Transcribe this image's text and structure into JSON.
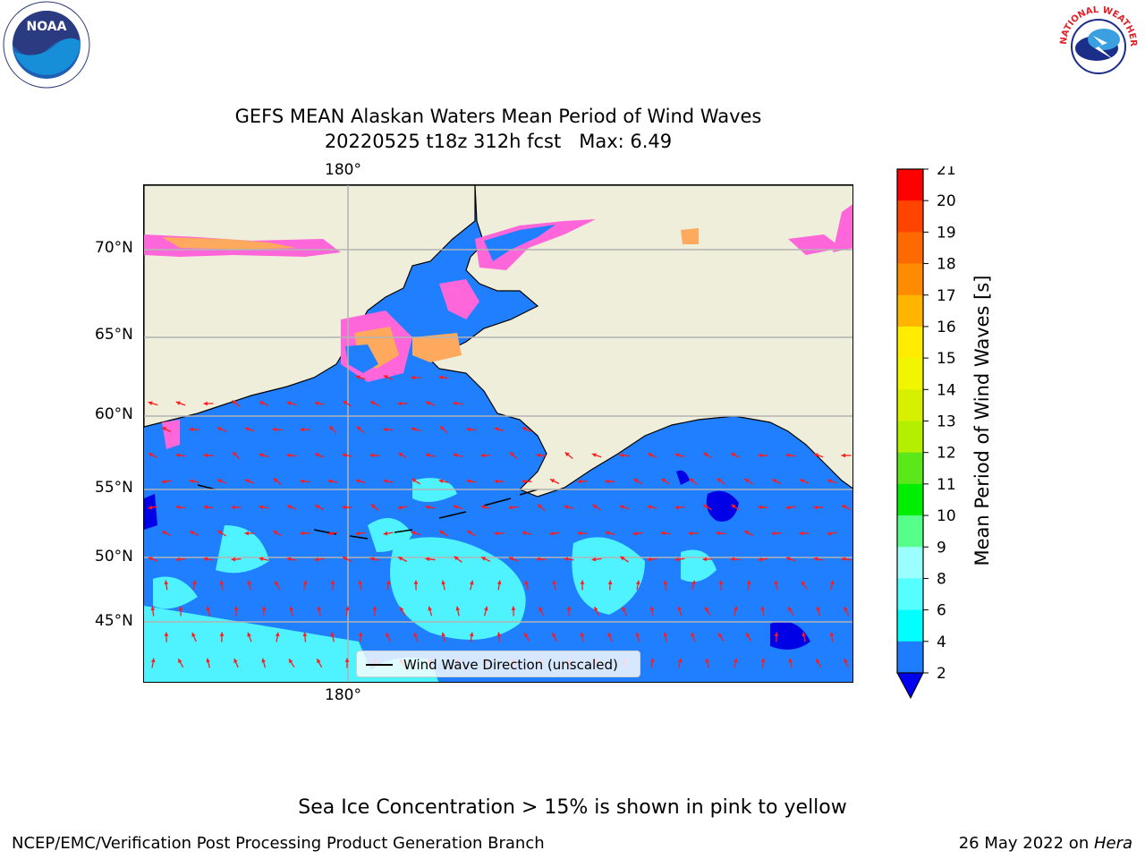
{
  "title": {
    "line1": "GEFS MEAN Alaskan Waters Mean Period of Wind Waves",
    "line2": "20220525 t18z 312h fcst   Max: 6.49"
  },
  "map": {
    "top_lon_label": "180°",
    "bottom_lon_label": "180°",
    "lat_labels": [
      "70°N",
      "65°N",
      "60°N",
      "55°N",
      "50°N",
      "45°N"
    ],
    "legend_label": "Wind Wave Direction (unscaled)"
  },
  "colorbar": {
    "label": "Mean Period of Wind Waves [s]",
    "ticks": [
      "21",
      "20",
      "19",
      "18",
      "17",
      "16",
      "15",
      "14",
      "13",
      "12",
      "11",
      "10",
      "9",
      "8",
      "6",
      "4",
      "2"
    ],
    "colors": {
      "2-4": "#1e7cff",
      "4-6": "#00ffff",
      "6-8": "#55ffff",
      "8-9": "#9cffff",
      "9-10": "#55ff8a",
      "10-11": "#00ee00",
      "11-12": "#5ae81a",
      "12-13": "#b5ef00",
      "13-14": "#d7f000",
      "14-15": "#f2f500",
      "15-16": "#ffec00",
      "16-17": "#ffb400",
      "17-18": "#ff8c00",
      "18-19": "#ff6a00",
      "19-20": "#ff4400",
      "20-21": "#ff0000",
      "under": "#0000ee"
    }
  },
  "colors": {
    "ocean": "#1f7fff",
    "ocean_light": "#4ef3ff",
    "ocean_dark": "#0000e6",
    "land": "#efeedb",
    "ice_pink": "#ff66d9",
    "ice_orange": "#ffa95e",
    "arrow": "#ff1a1a"
  },
  "note": "Sea Ice Concentration > 15% is shown in pink to yellow",
  "footer": {
    "left": "NCEP/EMC/Verification Post Processing Product Generation Branch",
    "date": "26 May 2022 on ",
    "host": "Hera"
  },
  "logos": {
    "noaa": "NOAA",
    "nws": "NATIONAL WEATHER SERVICE"
  }
}
